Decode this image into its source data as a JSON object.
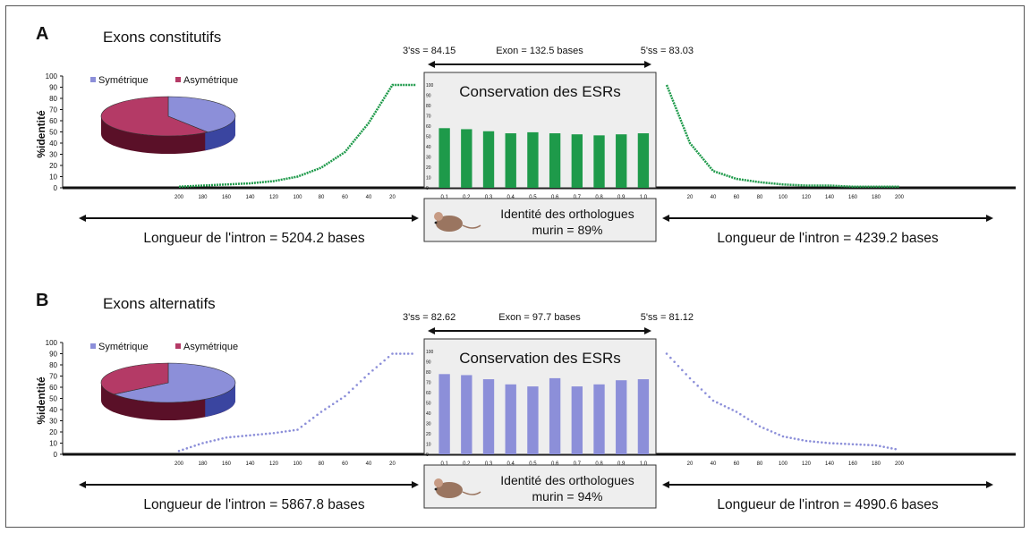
{
  "panels": [
    {
      "letter": "A",
      "title": "Exons constitutifs",
      "y_axis_label": "%identité",
      "pie_legend": [
        "Symétrique",
        "Asymétrique"
      ],
      "ss3_label": "3'ss = 84.15",
      "exon_label": "Exon = 132.5 bases",
      "ss5_label": "5'ss = 83.03",
      "esr_title": "Conservation des ESRs",
      "ortholog_line1": "Identité des orthologues",
      "ortholog_line2": "murin = 89%",
      "intron_left_label": "Longueur de l'intron = 5204.2 bases",
      "intron_right_label": "Longueur de l'intron = 4239.2 bases"
    },
    {
      "letter": "B",
      "title": "Exons alternatifs",
      "y_axis_label": "%identité",
      "pie_legend": [
        "Symétrique",
        "Asymétrique"
      ],
      "ss3_label": "3'ss = 82.62",
      "exon_label": "Exon = 97.7 bases",
      "ss5_label": "5'ss = 81.12",
      "esr_title": "Conservation des ESRs",
      "ortholog_line1": "Identité des orthologues",
      "ortholog_line2": "murin = 94%",
      "intron_left_label": "Longueur de l'intron = 5867.8 bases",
      "intron_right_label": "Longueur de l'intron = 4990.6 bases"
    }
  ],
  "colors": {
    "panel_a_series": "#1e9a4a",
    "panel_b_series": "#8c8fd9",
    "pie_symetrique": "#8c8fd9",
    "pie_asymetrique": "#b43a66",
    "axis": "#111111",
    "esr_box_bg": "#eeeeee"
  },
  "chart_data": [
    {
      "panel": "A",
      "type": "line",
      "subtype": "intron_upstream_identity",
      "x": [
        200,
        180,
        160,
        140,
        120,
        100,
        80,
        60,
        40,
        20
      ],
      "xlim": [
        200,
        0
      ],
      "y": [
        1,
        2,
        3,
        4,
        6,
        10,
        18,
        32,
        58,
        92
      ],
      "ylim": [
        0,
        100
      ],
      "yticks": [
        0,
        10,
        20,
        30,
        40,
        50,
        60,
        70,
        80,
        90,
        100
      ],
      "color": "#1e9a4a"
    },
    {
      "panel": "A",
      "type": "bar",
      "subtype": "exon_esr_conservation",
      "categories": [
        "0.1",
        "0.2",
        "0.3",
        "0.4",
        "0.5",
        "0.6",
        "0.7",
        "0.8",
        "0.9",
        "1.0"
      ],
      "values": [
        58,
        57,
        55,
        53,
        54,
        53,
        52,
        51,
        52,
        53
      ],
      "ylim": [
        0,
        100
      ],
      "color": "#1e9a4a"
    },
    {
      "panel": "A",
      "type": "line",
      "subtype": "intron_downstream_identity",
      "x": [
        0,
        20,
        40,
        60,
        80,
        100,
        120,
        140,
        160,
        180,
        200
      ],
      "xlim": [
        0,
        200
      ],
      "y": [
        92,
        40,
        15,
        8,
        5,
        3,
        2,
        2,
        1,
        1,
        1
      ],
      "ylim": [
        0,
        100
      ],
      "color": "#1e9a4a"
    },
    {
      "panel": "A",
      "type": "pie",
      "labels": [
        "Symétrique",
        "Asymétrique"
      ],
      "values": [
        40,
        60
      ],
      "colors": [
        "#8c8fd9",
        "#b43a66"
      ]
    },
    {
      "panel": "B",
      "type": "scatter",
      "subtype": "intron_upstream_identity",
      "x": [
        200,
        180,
        160,
        140,
        120,
        100,
        80,
        60,
        40,
        20
      ],
      "xlim": [
        200,
        0
      ],
      "y": [
        3,
        10,
        15,
        17,
        19,
        22,
        38,
        52,
        72,
        90
      ],
      "ylim": [
        0,
        100
      ],
      "yticks": [
        0,
        10,
        20,
        30,
        40,
        50,
        60,
        70,
        80,
        90,
        100
      ],
      "color": "#8c8fd9"
    },
    {
      "panel": "B",
      "type": "bar",
      "subtype": "exon_esr_conservation",
      "categories": [
        "0.1",
        "0.2",
        "0.3",
        "0.4",
        "0.5",
        "0.6",
        "0.7",
        "0.8",
        "0.9",
        "1.0"
      ],
      "values": [
        78,
        77,
        73,
        68,
        66,
        74,
        66,
        68,
        72,
        73
      ],
      "ylim": [
        0,
        100
      ],
      "color": "#8c8fd9"
    },
    {
      "panel": "B",
      "type": "scatter",
      "subtype": "intron_downstream_identity",
      "x": [
        0,
        20,
        40,
        60,
        80,
        100,
        120,
        140,
        160,
        180,
        200
      ],
      "xlim": [
        0,
        200
      ],
      "y": [
        90,
        68,
        48,
        38,
        25,
        16,
        12,
        10,
        9,
        8,
        4
      ],
      "ylim": [
        0,
        100
      ],
      "color": "#8c8fd9"
    },
    {
      "panel": "B",
      "type": "pie",
      "labels": [
        "Symétrique",
        "Asymétrique"
      ],
      "values": [
        65,
        35
      ],
      "colors": [
        "#8c8fd9",
        "#b43a66"
      ]
    }
  ]
}
